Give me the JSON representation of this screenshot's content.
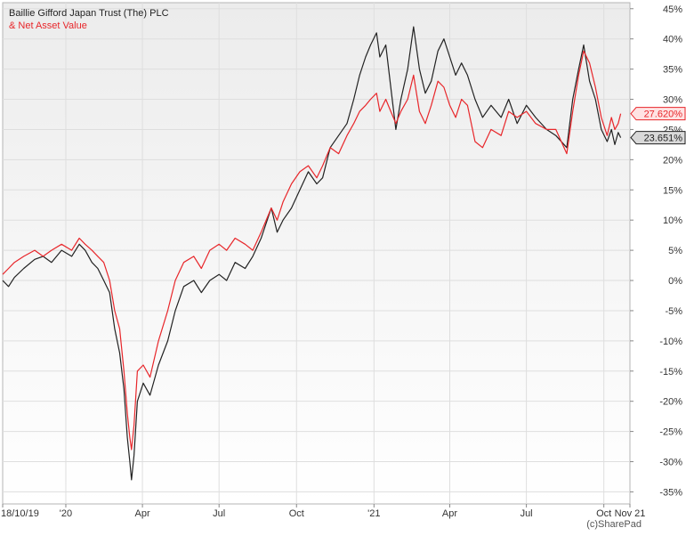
{
  "legend": {
    "series1": "Baillie Gifford Japan Trust (The) PLC",
    "series2": "& Net Asset Value"
  },
  "copyright": "(c)SharePad",
  "chart_data": {
    "type": "line",
    "title": "",
    "xlabel": "",
    "ylabel": "",
    "x_start": "2019-10-18",
    "x_end": "2021-11-01",
    "ylim": [
      -37,
      46
    ],
    "y_ticks": [
      {
        "value": 45,
        "label": "45%"
      },
      {
        "value": 40,
        "label": "40%"
      },
      {
        "value": 35,
        "label": "35%"
      },
      {
        "value": 30,
        "label": "30%"
      },
      {
        "value": 25,
        "label": "25%"
      },
      {
        "value": 20,
        "label": "20%"
      },
      {
        "value": 15,
        "label": "15%"
      },
      {
        "value": 10,
        "label": "10%"
      },
      {
        "value": 5,
        "label": "5%"
      },
      {
        "value": 0,
        "label": "0%"
      },
      {
        "value": -5,
        "label": "-5%"
      },
      {
        "value": -10,
        "label": "-10%"
      },
      {
        "value": -15,
        "label": "-15%"
      },
      {
        "value": -20,
        "label": "-20%"
      },
      {
        "value": -25,
        "label": "-25%"
      },
      {
        "value": -30,
        "label": "-30%"
      },
      {
        "value": -35,
        "label": "-35%"
      }
    ],
    "x_ticks": [
      {
        "date": "2019-10-18",
        "label": "18/10/19"
      },
      {
        "date": "2020-01-01",
        "label": "'20"
      },
      {
        "date": "2020-04-01",
        "label": "Apr"
      },
      {
        "date": "2020-07-01",
        "label": "Jul"
      },
      {
        "date": "2020-10-01",
        "label": "Oct"
      },
      {
        "date": "2021-01-01",
        "label": "'21"
      },
      {
        "date": "2021-04-01",
        "label": "Apr"
      },
      {
        "date": "2021-07-01",
        "label": "Jul"
      },
      {
        "date": "2021-10-01",
        "label": "Oct"
      },
      {
        "date": "2021-11-01",
        "label": "Nov 21"
      }
    ],
    "grid": true,
    "legend_position": "top-left",
    "series": [
      {
        "name": "Baillie Gifford Japan Trust (The) PLC",
        "color": "#222222",
        "last_label": "23.651%",
        "points": [
          [
            "2019-10-18",
            0
          ],
          [
            "2019-10-25",
            -1
          ],
          [
            "2019-11-01",
            0.5
          ],
          [
            "2019-11-12",
            2
          ],
          [
            "2019-11-25",
            3.5
          ],
          [
            "2019-12-05",
            4
          ],
          [
            "2019-12-15",
            3
          ],
          [
            "2019-12-27",
            5
          ],
          [
            "2020-01-08",
            4
          ],
          [
            "2020-01-17",
            6
          ],
          [
            "2020-01-24",
            5
          ],
          [
            "2020-02-01",
            3
          ],
          [
            "2020-02-08",
            2
          ],
          [
            "2020-02-15",
            0
          ],
          [
            "2020-02-22",
            -2
          ],
          [
            "2020-02-28",
            -8
          ],
          [
            "2020-03-05",
            -12
          ],
          [
            "2020-03-10",
            -18
          ],
          [
            "2020-03-14",
            -26
          ],
          [
            "2020-03-17",
            -30
          ],
          [
            "2020-03-19",
            -33
          ],
          [
            "2020-03-22",
            -29
          ],
          [
            "2020-03-26",
            -20
          ],
          [
            "2020-04-02",
            -17
          ],
          [
            "2020-04-10",
            -19
          ],
          [
            "2020-04-20",
            -14
          ],
          [
            "2020-05-01",
            -10
          ],
          [
            "2020-05-10",
            -5
          ],
          [
            "2020-05-20",
            -1
          ],
          [
            "2020-06-01",
            0
          ],
          [
            "2020-06-10",
            -2
          ],
          [
            "2020-06-20",
            0
          ],
          [
            "2020-07-01",
            1
          ],
          [
            "2020-07-10",
            0
          ],
          [
            "2020-07-20",
            3
          ],
          [
            "2020-08-01",
            2
          ],
          [
            "2020-08-10",
            4
          ],
          [
            "2020-08-20",
            7
          ],
          [
            "2020-09-01",
            12
          ],
          [
            "2020-09-08",
            8
          ],
          [
            "2020-09-15",
            10
          ],
          [
            "2020-09-25",
            12
          ],
          [
            "2020-10-05",
            15
          ],
          [
            "2020-10-15",
            18
          ],
          [
            "2020-10-25",
            16
          ],
          [
            "2020-11-01",
            17
          ],
          [
            "2020-11-10",
            22
          ],
          [
            "2020-11-20",
            24
          ],
          [
            "2020-11-30",
            26
          ],
          [
            "2020-12-08",
            30
          ],
          [
            "2020-12-15",
            34
          ],
          [
            "2020-12-22",
            37
          ],
          [
            "2020-12-28",
            39
          ],
          [
            "2021-01-04",
            41
          ],
          [
            "2021-01-08",
            37
          ],
          [
            "2021-01-15",
            39
          ],
          [
            "2021-01-21",
            32
          ],
          [
            "2021-01-27",
            25
          ],
          [
            "2021-02-02",
            30
          ],
          [
            "2021-02-10",
            35
          ],
          [
            "2021-02-17",
            42
          ],
          [
            "2021-02-24",
            35
          ],
          [
            "2021-03-03",
            31
          ],
          [
            "2021-03-10",
            33
          ],
          [
            "2021-03-18",
            38
          ],
          [
            "2021-03-25",
            40
          ],
          [
            "2021-04-01",
            37
          ],
          [
            "2021-04-08",
            34
          ],
          [
            "2021-04-15",
            36
          ],
          [
            "2021-04-22",
            34
          ],
          [
            "2021-05-01",
            30
          ],
          [
            "2021-05-10",
            27
          ],
          [
            "2021-05-20",
            29
          ],
          [
            "2021-06-01",
            27
          ],
          [
            "2021-06-10",
            30
          ],
          [
            "2021-06-20",
            26
          ],
          [
            "2021-07-01",
            29
          ],
          [
            "2021-07-12",
            27
          ],
          [
            "2021-07-25",
            25
          ],
          [
            "2021-08-05",
            24
          ],
          [
            "2021-08-18",
            22
          ],
          [
            "2021-08-25",
            30
          ],
          [
            "2021-09-01",
            35
          ],
          [
            "2021-09-07",
            39
          ],
          [
            "2021-09-14",
            33
          ],
          [
            "2021-09-21",
            30
          ],
          [
            "2021-09-28",
            25
          ],
          [
            "2021-10-05",
            23
          ],
          [
            "2021-10-10",
            25
          ],
          [
            "2021-10-14",
            22.5
          ],
          [
            "2021-10-18",
            24.5
          ],
          [
            "2021-10-21",
            23.651
          ]
        ]
      },
      {
        "name": "& Net Asset Value",
        "color": "#e8262a",
        "last_label": "27.620%",
        "points": [
          [
            "2019-10-18",
            1
          ],
          [
            "2019-10-25",
            2
          ],
          [
            "2019-11-01",
            3
          ],
          [
            "2019-11-12",
            4
          ],
          [
            "2019-11-25",
            5
          ],
          [
            "2019-12-05",
            4
          ],
          [
            "2019-12-15",
            5
          ],
          [
            "2019-12-27",
            6
          ],
          [
            "2020-01-08",
            5
          ],
          [
            "2020-01-17",
            7
          ],
          [
            "2020-01-24",
            6
          ],
          [
            "2020-02-01",
            5
          ],
          [
            "2020-02-08",
            4
          ],
          [
            "2020-02-15",
            3
          ],
          [
            "2020-02-22",
            0
          ],
          [
            "2020-02-28",
            -5
          ],
          [
            "2020-03-05",
            -8
          ],
          [
            "2020-03-10",
            -15
          ],
          [
            "2020-03-14",
            -22
          ],
          [
            "2020-03-17",
            -26
          ],
          [
            "2020-03-19",
            -28
          ],
          [
            "2020-03-22",
            -24
          ],
          [
            "2020-03-26",
            -15
          ],
          [
            "2020-04-02",
            -14
          ],
          [
            "2020-04-10",
            -16
          ],
          [
            "2020-04-20",
            -10
          ],
          [
            "2020-05-01",
            -5
          ],
          [
            "2020-05-10",
            0
          ],
          [
            "2020-05-20",
            3
          ],
          [
            "2020-06-01",
            4
          ],
          [
            "2020-06-10",
            2
          ],
          [
            "2020-06-20",
            5
          ],
          [
            "2020-07-01",
            6
          ],
          [
            "2020-07-10",
            5
          ],
          [
            "2020-07-20",
            7
          ],
          [
            "2020-08-01",
            6
          ],
          [
            "2020-08-10",
            5
          ],
          [
            "2020-08-20",
            8
          ],
          [
            "2020-09-01",
            12
          ],
          [
            "2020-09-08",
            10
          ],
          [
            "2020-09-15",
            13
          ],
          [
            "2020-09-25",
            16
          ],
          [
            "2020-10-05",
            18
          ],
          [
            "2020-10-15",
            19
          ],
          [
            "2020-10-25",
            17
          ],
          [
            "2020-11-01",
            19
          ],
          [
            "2020-11-10",
            22
          ],
          [
            "2020-11-20",
            21
          ],
          [
            "2020-11-30",
            24
          ],
          [
            "2020-12-08",
            26
          ],
          [
            "2020-12-15",
            28
          ],
          [
            "2020-12-22",
            29
          ],
          [
            "2020-12-28",
            30
          ],
          [
            "2021-01-04",
            31
          ],
          [
            "2021-01-08",
            28
          ],
          [
            "2021-01-15",
            30
          ],
          [
            "2021-01-21",
            28
          ],
          [
            "2021-01-27",
            26
          ],
          [
            "2021-02-02",
            28
          ],
          [
            "2021-02-10",
            30
          ],
          [
            "2021-02-17",
            34
          ],
          [
            "2021-02-24",
            28
          ],
          [
            "2021-03-03",
            26
          ],
          [
            "2021-03-10",
            29
          ],
          [
            "2021-03-18",
            33
          ],
          [
            "2021-03-25",
            32
          ],
          [
            "2021-04-01",
            29
          ],
          [
            "2021-04-08",
            27
          ],
          [
            "2021-04-15",
            30
          ],
          [
            "2021-04-22",
            29
          ],
          [
            "2021-05-01",
            23
          ],
          [
            "2021-05-10",
            22
          ],
          [
            "2021-05-20",
            25
          ],
          [
            "2021-06-01",
            24
          ],
          [
            "2021-06-10",
            28
          ],
          [
            "2021-06-20",
            27
          ],
          [
            "2021-07-01",
            28
          ],
          [
            "2021-07-12",
            26
          ],
          [
            "2021-07-25",
            25
          ],
          [
            "2021-08-05",
            25
          ],
          [
            "2021-08-18",
            21
          ],
          [
            "2021-08-25",
            28
          ],
          [
            "2021-09-01",
            34
          ],
          [
            "2021-09-07",
            38
          ],
          [
            "2021-09-14",
            36
          ],
          [
            "2021-09-21",
            32
          ],
          [
            "2021-09-28",
            27
          ],
          [
            "2021-10-05",
            24
          ],
          [
            "2021-10-10",
            27
          ],
          [
            "2021-10-14",
            25
          ],
          [
            "2021-10-18",
            26
          ],
          [
            "2021-10-21",
            27.62
          ]
        ]
      }
    ]
  }
}
